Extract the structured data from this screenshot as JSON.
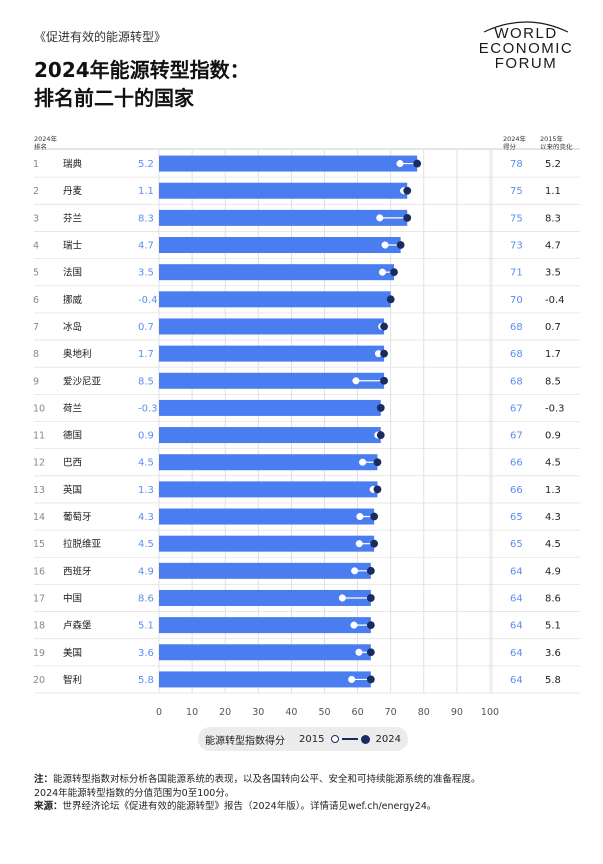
{
  "kicker": "《促进有效的能源转型》",
  "title_line1": "2024年能源转型指数：",
  "title_line2": "排名前二十的国家",
  "logo": {
    "line1": "WORLD",
    "line2": "ECONOMIC",
    "line3": "FORUM"
  },
  "headers": {
    "rank_line1": "2024年",
    "rank_line2": "排名",
    "score_line1": "2024年",
    "score_line2": "得分",
    "change_line1": "2015年",
    "change_line2": "以来的变化"
  },
  "legend": {
    "title": "能源转型指数得分",
    "label_2015": "2015",
    "label_2024": "2024"
  },
  "notes": {
    "note_label": "注：",
    "note_text1": "能源转型指数对标分析各国能源系统的表现，以及各国转向公平、安全和可持续能源系统的准备程度。",
    "note_text2": "2024年能源转型指数的分值范围为0至100分。",
    "source_label": "来源：",
    "source_text": "世界经济论坛《促进有效的能源转型》报告（2024年版）。详情请见wef.ch/energy24。"
  },
  "colors": {
    "bar": "#4a7df0",
    "change_text": "#5b8ef0",
    "marker": "#1a2b5e",
    "line": "#7a8bb0",
    "grid": "#d9d9d9",
    "divider": "#e3e3e3"
  },
  "chart_data": {
    "type": "bar",
    "orientation": "horizontal",
    "xlim": [
      0,
      100
    ],
    "xticks": [
      0,
      10,
      20,
      30,
      40,
      50,
      60,
      70,
      80,
      90,
      100
    ],
    "rows": [
      {
        "rank": "1",
        "country": "瑞典",
        "change": "5.2",
        "score": 78,
        "score_label": "78",
        "change_right": "5.2",
        "score_2015": 72.8
      },
      {
        "rank": "2",
        "country": "丹麦",
        "change": "1.1",
        "score": 75,
        "score_label": "75",
        "change_right": "1.1",
        "score_2015": 73.9
      },
      {
        "rank": "3",
        "country": "芬兰",
        "change": "8.3",
        "score": 75,
        "score_label": "75",
        "change_right": "8.3",
        "score_2015": 66.7
      },
      {
        "rank": "4",
        "country": "瑞士",
        "change": "4.7",
        "score": 73,
        "score_label": "73",
        "change_right": "4.7",
        "score_2015": 68.3
      },
      {
        "rank": "5",
        "country": "法国",
        "change": "3.5",
        "score": 71,
        "score_label": "71",
        "change_right": "3.5",
        "score_2015": 67.5
      },
      {
        "rank": "6",
        "country": "挪威",
        "change": "-0.4",
        "score": 70,
        "score_label": "70",
        "change_right": "-0.4",
        "score_2015": 70.4
      },
      {
        "rank": "7",
        "country": "冰岛",
        "change": "0.7",
        "score": 68,
        "score_label": "68",
        "change_right": "0.7",
        "score_2015": 67.3
      },
      {
        "rank": "8",
        "country": "奥地利",
        "change": "1.7",
        "score": 68,
        "score_label": "68",
        "change_right": "1.7",
        "score_2015": 66.3
      },
      {
        "rank": "9",
        "country": "爱沙尼亚",
        "change": "8.5",
        "score": 68,
        "score_label": "68",
        "change_right": "8.5",
        "score_2015": 59.5
      },
      {
        "rank": "10",
        "country": "荷兰",
        "change": "-0.3",
        "score": 67,
        "score_label": "67",
        "change_right": "-0.3",
        "score_2015": 67.3
      },
      {
        "rank": "11",
        "country": "德国",
        "change": "0.9",
        "score": 67,
        "score_label": "67",
        "change_right": "0.9",
        "score_2015": 66.1
      },
      {
        "rank": "12",
        "country": "巴西",
        "change": "4.5",
        "score": 66,
        "score_label": "66",
        "change_right": "4.5",
        "score_2015": 61.5
      },
      {
        "rank": "13",
        "country": "英国",
        "change": "1.3",
        "score": 66,
        "score_label": "66",
        "change_right": "1.3",
        "score_2015": 64.7
      },
      {
        "rank": "14",
        "country": "葡萄牙",
        "change": "4.3",
        "score": 65,
        "score_label": "65",
        "change_right": "4.3",
        "score_2015": 60.7
      },
      {
        "rank": "15",
        "country": "拉脱维亚",
        "change": "4.5",
        "score": 65,
        "score_label": "65",
        "change_right": "4.5",
        "score_2015": 60.5
      },
      {
        "rank": "16",
        "country": "西班牙",
        "change": "4.9",
        "score": 64,
        "score_label": "64",
        "change_right": "4.9",
        "score_2015": 59.1
      },
      {
        "rank": "17",
        "country": "中国",
        "change": "8.6",
        "score": 64,
        "score_label": "64",
        "change_right": "8.6",
        "score_2015": 55.4
      },
      {
        "rank": "18",
        "country": "卢森堡",
        "change": "5.1",
        "score": 64,
        "score_label": "64",
        "change_right": "5.1",
        "score_2015": 58.9
      },
      {
        "rank": "19",
        "country": "美国",
        "change": "3.6",
        "score": 64,
        "score_label": "64",
        "change_right": "3.6",
        "score_2015": 60.4
      },
      {
        "rank": "20",
        "country": "智利",
        "change": "5.8",
        "score": 64,
        "score_label": "64",
        "change_right": "5.8",
        "score_2015": 58.2
      }
    ]
  }
}
